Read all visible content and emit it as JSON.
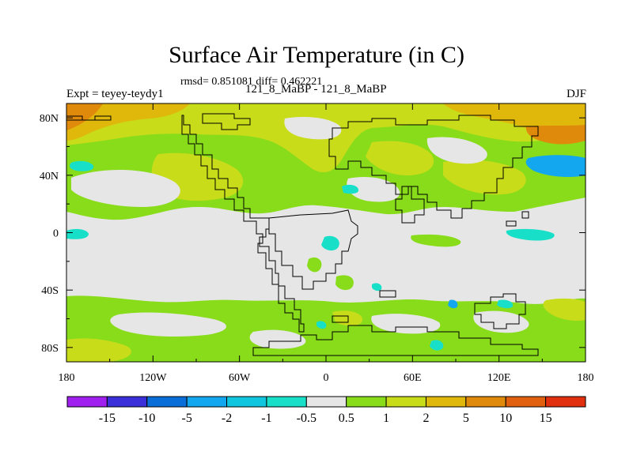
{
  "title": "Surface Air Temperature (in C)",
  "subtitle": "rmsd= 0.851081 diff= 0.462221",
  "left_label": "Expt = teyey-teydy1",
  "center_label": "121_8_MaBP - 121_8_MaBP",
  "right_label": "DJF",
  "chart_data": {
    "type": "heatmap",
    "title": "Surface Air Temperature (in C)",
    "x_ticks": [
      "180",
      "120W",
      "60W",
      "0",
      "60E",
      "120E",
      "180"
    ],
    "y_ticks": [
      "80N",
      "40N",
      "0",
      "40S",
      "80S"
    ],
    "xlim": [
      -180,
      180
    ],
    "ylim": [
      -90,
      90
    ],
    "colorbar": {
      "labels": [
        "-15",
        "-10",
        "-5",
        "-2",
        "-1",
        "-0.5",
        "0.5",
        "1",
        "2",
        "5",
        "10",
        "15"
      ],
      "colors": [
        "#a020f0",
        "#3a2fd8",
        "#0a6ed8",
        "#12a7ee",
        "#10c6de",
        "#18e0c8",
        "#e6e6e6",
        "#88dc1a",
        "#c8dc1a",
        "#e0b80c",
        "#e08a0c",
        "#e06010",
        "#e03010"
      ]
    }
  }
}
